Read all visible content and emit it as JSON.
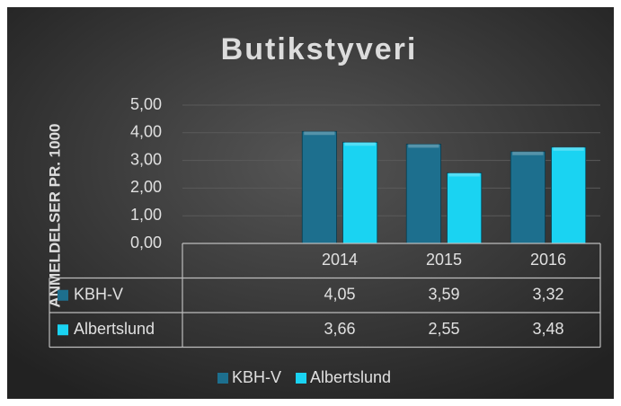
{
  "chart_data": {
    "type": "bar",
    "title": "Butikstyveri",
    "y_label": "ANMELDELSER PR. 1000",
    "categories": [
      "2014",
      "2015",
      "2016"
    ],
    "series": [
      {
        "name": "KBH-V",
        "color": "#1d6f8e",
        "values": [
          4.05,
          3.59,
          3.32
        ],
        "value_labels": [
          "4,05",
          "3,59",
          "3,32"
        ]
      },
      {
        "name": "Albertslund",
        "color": "#1ad3f2",
        "values": [
          3.66,
          2.55,
          3.48
        ],
        "value_labels": [
          "3,66",
          "2,55",
          "3,48"
        ]
      }
    ],
    "ylim": [
      0,
      5
    ],
    "yticks": [
      {
        "value": 0,
        "label": "0,00"
      },
      {
        "value": 1,
        "label": "1,00"
      },
      {
        "value": 2,
        "label": "2,00"
      },
      {
        "value": 3,
        "label": "3,00"
      },
      {
        "value": 4,
        "label": "4,00"
      },
      {
        "value": 5,
        "label": "5,00"
      }
    ],
    "grid": true,
    "legend": "bottom",
    "data_table": true
  }
}
